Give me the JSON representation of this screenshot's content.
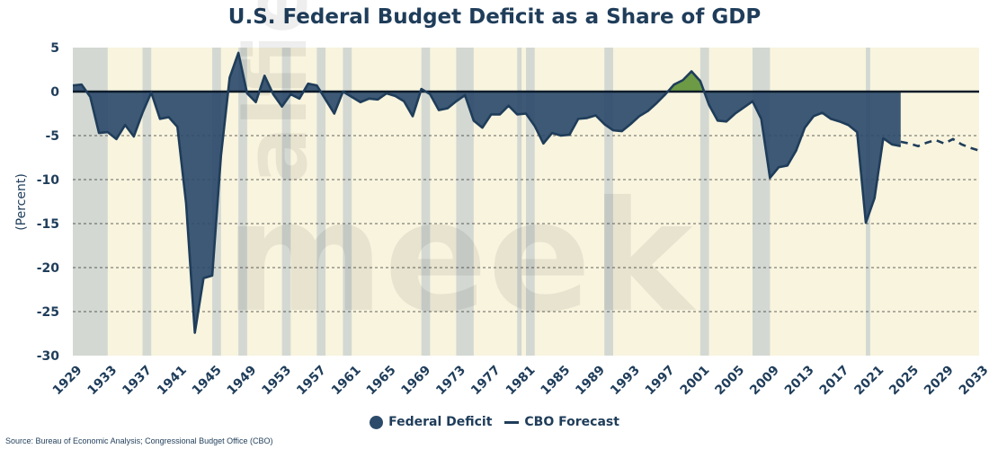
{
  "chart_data": {
    "type": "area",
    "title": "U.S. Federal Budget Deficit as a Share of GDP",
    "ylabel": "(Percent)",
    "xlabel": "",
    "xlim": [
      1929,
      2033
    ],
    "ylim": [
      -30,
      5
    ],
    "yticks": [
      5,
      0,
      -5,
      -10,
      -15,
      -20,
      -25,
      -30
    ],
    "xticks": [
      1929,
      1933,
      1937,
      1941,
      1945,
      1949,
      1953,
      1957,
      1961,
      1965,
      1969,
      1973,
      1977,
      1981,
      1985,
      1989,
      1993,
      1997,
      2001,
      2005,
      2009,
      2013,
      2017,
      2021,
      2025,
      2029,
      2033
    ],
    "grid": true,
    "legend_position": "bottom-center",
    "recessions": [
      [
        1929,
        1933
      ],
      [
        1937,
        1938
      ],
      [
        1945,
        1946
      ],
      [
        1948,
        1949
      ],
      [
        1953,
        1954
      ],
      [
        1957,
        1958
      ],
      [
        1960,
        1961
      ],
      [
        1969,
        1970
      ],
      [
        1973,
        1975
      ],
      [
        1980,
        1980.5
      ],
      [
        1981,
        1982
      ],
      [
        1990,
        1991
      ],
      [
        2001,
        2002
      ],
      [
        2007,
        2009
      ],
      [
        2020,
        2020.5
      ]
    ],
    "series": [
      {
        "name": "Federal Deficit",
        "color": "#2c4b6b",
        "surplus_color": "#6c9a45",
        "x": [
          1929,
          1930,
          1931,
          1932,
          1933,
          1934,
          1935,
          1936,
          1937,
          1938,
          1939,
          1940,
          1941,
          1942,
          1943,
          1944,
          1945,
          1946,
          1947,
          1948,
          1949,
          1950,
          1951,
          1952,
          1953,
          1954,
          1955,
          1956,
          1957,
          1958,
          1959,
          1960,
          1961,
          1962,
          1963,
          1964,
          1965,
          1966,
          1967,
          1968,
          1969,
          1970,
          1971,
          1972,
          1973,
          1974,
          1975,
          1976,
          1977,
          1978,
          1979,
          1980,
          1981,
          1982,
          1983,
          1984,
          1985,
          1986,
          1987,
          1988,
          1989,
          1990,
          1991,
          1992,
          1993,
          1994,
          1995,
          1996,
          1997,
          1998,
          1999,
          2000,
          2001,
          2002,
          2003,
          2004,
          2005,
          2006,
          2007,
          2008,
          2009,
          2010,
          2011,
          2012,
          2013,
          2014,
          2015,
          2016,
          2017,
          2018,
          2019,
          2020,
          2021,
          2022,
          2023,
          2024
        ],
        "values": [
          0.7,
          0.8,
          -0.6,
          -4.7,
          -4.6,
          -5.4,
          -3.8,
          -5.1,
          -2.4,
          -0.1,
          -3.1,
          -2.9,
          -4.0,
          -12.7,
          -27.4,
          -21.2,
          -20.9,
          -7.3,
          1.6,
          4.4,
          -0.2,
          -1.2,
          1.8,
          -0.3,
          -1.7,
          -0.3,
          -0.8,
          0.9,
          0.7,
          -0.9,
          -2.5,
          0.0,
          -0.6,
          -1.2,
          -0.8,
          -0.9,
          -0.2,
          -0.5,
          -1.1,
          -2.8,
          0.3,
          -0.3,
          -2.1,
          -1.9,
          -1.1,
          -0.4,
          -3.3,
          -4.1,
          -2.6,
          -2.6,
          -1.6,
          -2.6,
          -2.5,
          -3.9,
          -5.9,
          -4.7,
          -5.0,
          -4.9,
          -3.1,
          -3.0,
          -2.7,
          -3.7,
          -4.4,
          -4.5,
          -3.7,
          -2.8,
          -2.2,
          -1.3,
          -0.3,
          0.8,
          1.3,
          2.3,
          1.2,
          -1.5,
          -3.3,
          -3.4,
          -2.5,
          -1.8,
          -1.1,
          -3.1,
          -9.8,
          -8.6,
          -8.4,
          -6.7,
          -4.1,
          -2.8,
          -2.4,
          -3.1,
          -3.4,
          -3.8,
          -4.6,
          -14.9,
          -12.1,
          -5.3,
          -6.0,
          -6.2
        ]
      },
      {
        "name": "CBO Forecast",
        "color": "#1f3d5a",
        "x": [
          2024,
          2025,
          2026,
          2027,
          2028,
          2029,
          2030,
          2031,
          2032,
          2033
        ],
        "values": [
          -5.7,
          -5.9,
          -6.2,
          -5.8,
          -5.5,
          -5.9,
          -5.4,
          -6.0,
          -6.4,
          -6.7
        ]
      }
    ],
    "legend": [
      {
        "label": "Federal Deficit",
        "icon": "circle-marker-icon",
        "color": "#2c4b6b"
      },
      {
        "label": "CBO Forecast",
        "icon": "dash-line-icon",
        "color": "#1f3d5a"
      }
    ],
    "source": "Source: Bureau of Economic Analysis; Congressional Budget Office (CBO)"
  }
}
